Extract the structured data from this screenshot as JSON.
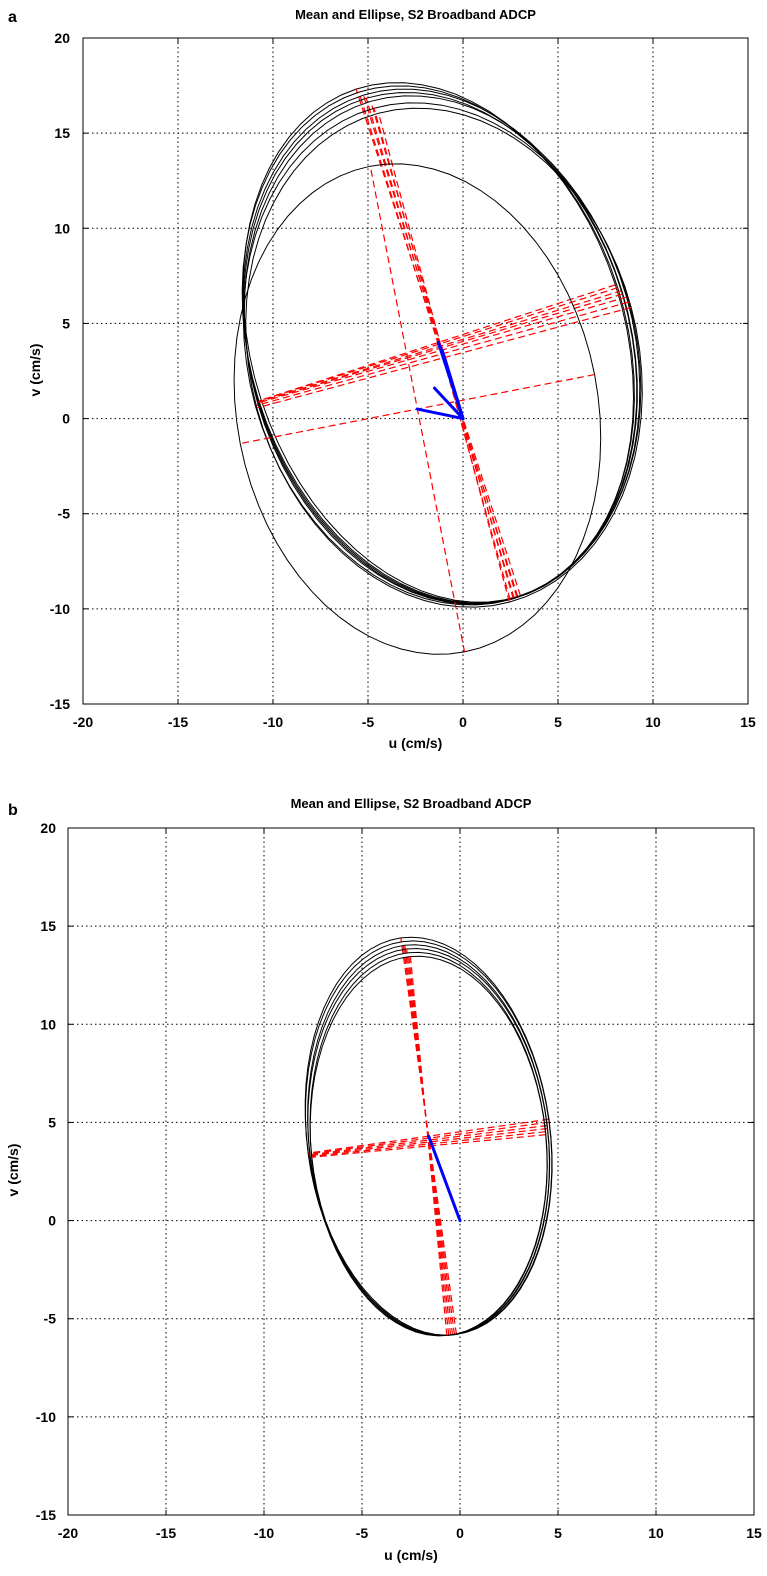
{
  "chart_data": [
    {
      "panel_label": "a",
      "type": "scatter",
      "title": "Mean and Ellipse, S2 Broadband ADCP",
      "xlabel": "u (cm/s)",
      "ylabel": "v (cm/s)",
      "xlim": [
        -20,
        15
      ],
      "ylim": [
        -15,
        20
      ],
      "xticks": [
        -20,
        -15,
        -10,
        -5,
        0,
        5,
        10,
        15
      ],
      "yticks": [
        -15,
        -10,
        -5,
        0,
        5,
        10,
        15,
        20
      ],
      "grid": true,
      "colors": {
        "ellipse": "#000000",
        "axes": "#ff0000",
        "mean": "#0000ff"
      },
      "ellipses": [
        {
          "cx": -1.3,
          "cy": 4.0,
          "a": 14.0,
          "b": 9.8,
          "angle_deg": 108
        },
        {
          "cx": -1.3,
          "cy": 3.9,
          "a": 13.9,
          "b": 9.9,
          "angle_deg": 107.5
        },
        {
          "cx": -1.2,
          "cy": 3.8,
          "a": 13.8,
          "b": 10.0,
          "angle_deg": 107
        },
        {
          "cx": -1.2,
          "cy": 3.7,
          "a": 13.7,
          "b": 10.0,
          "angle_deg": 106.5
        },
        {
          "cx": -1.1,
          "cy": 3.6,
          "a": 13.6,
          "b": 10.1,
          "angle_deg": 106
        },
        {
          "cx": -1.1,
          "cy": 3.4,
          "a": 13.4,
          "b": 10.2,
          "angle_deg": 105.5
        },
        {
          "cx": -1.0,
          "cy": 3.2,
          "a": 13.3,
          "b": 10.2,
          "angle_deg": 105
        },
        {
          "cx": -2.4,
          "cy": 0.5,
          "a": 13.0,
          "b": 9.5,
          "angle_deg": 101
        }
      ],
      "mean_vectors": [
        {
          "u": -1.3,
          "v": 4.0
        },
        {
          "u": -1.2,
          "v": 3.8
        },
        {
          "u": -1.1,
          "v": 3.6
        },
        {
          "u": -1.0,
          "v": 3.3
        },
        {
          "u": -1.5,
          "v": 1.6
        },
        {
          "u": -2.4,
          "v": 0.5
        }
      ]
    },
    {
      "panel_label": "b",
      "type": "scatter",
      "title": "Mean and Ellipse, S2 Broadband ADCP",
      "xlabel": "u (cm/s)",
      "ylabel": "v (cm/s)",
      "xlim": [
        -20,
        15
      ],
      "ylim": [
        -15,
        20
      ],
      "xticks": [
        -20,
        -15,
        -10,
        -5,
        0,
        5,
        10,
        15
      ],
      "yticks": [
        -15,
        -10,
        -5,
        0,
        5,
        10,
        15,
        20
      ],
      "grid": true,
      "colors": {
        "ellipse": "#000000",
        "axes": "#ff0000",
        "mean": "#0000ff"
      },
      "ellipses": [
        {
          "cx": -1.6,
          "cy": 4.3,
          "a": 10.2,
          "b": 6.2,
          "angle_deg": 98
        },
        {
          "cx": -1.6,
          "cy": 4.2,
          "a": 10.1,
          "b": 6.2,
          "angle_deg": 97.5
        },
        {
          "cx": -1.6,
          "cy": 4.1,
          "a": 10.0,
          "b": 6.1,
          "angle_deg": 97
        },
        {
          "cx": -1.6,
          "cy": 4.0,
          "a": 9.9,
          "b": 6.1,
          "angle_deg": 96.5
        },
        {
          "cx": -1.6,
          "cy": 3.9,
          "a": 9.8,
          "b": 6.0,
          "angle_deg": 96
        },
        {
          "cx": -1.6,
          "cy": 3.8,
          "a": 9.7,
          "b": 6.0,
          "angle_deg": 95.5
        }
      ],
      "mean_vectors": [
        {
          "u": -1.6,
          "v": 4.3
        }
      ]
    }
  ]
}
